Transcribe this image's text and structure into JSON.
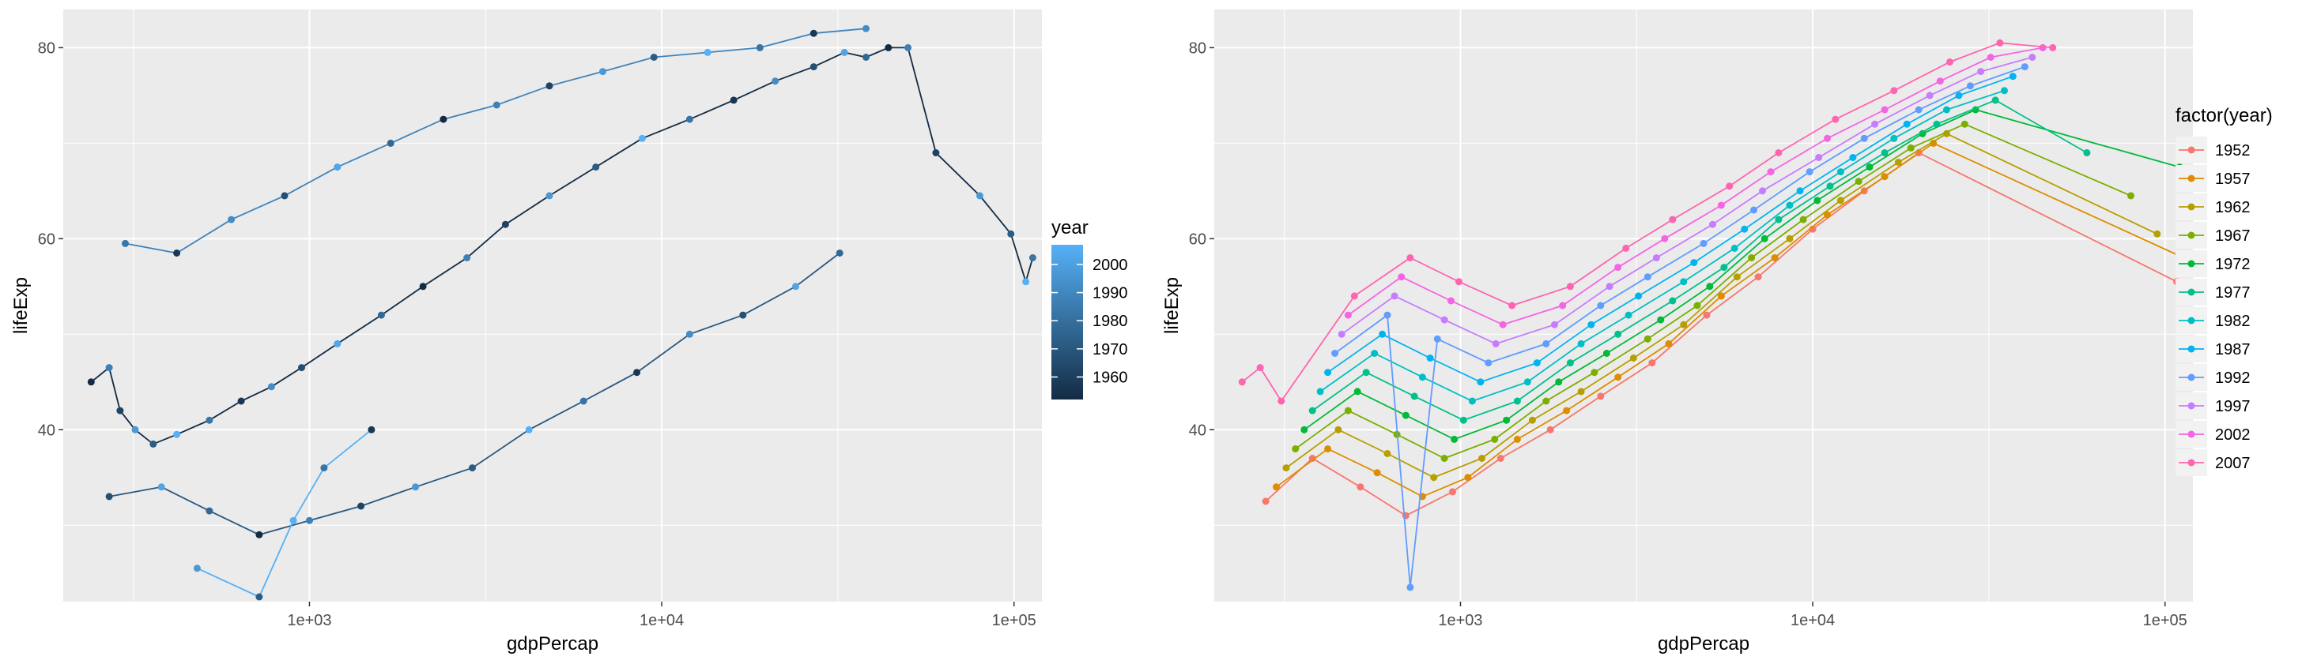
{
  "chart_data": [
    {
      "type": "line",
      "xlabel": "gdpPercap",
      "ylabel": "lifeExp",
      "x_scale": "log10",
      "xlim": [
        200,
        120000
      ],
      "ylim": [
        22,
        84
      ],
      "x_ticks": [
        {
          "value": 1000,
          "label": "1e+03"
        },
        {
          "value": 10000,
          "label": "1e+04"
        },
        {
          "value": 100000,
          "label": "1e+05"
        }
      ],
      "y_ticks": [
        {
          "value": 40,
          "label": "40"
        },
        {
          "value": 60,
          "label": "60"
        },
        {
          "value": 80,
          "label": "80"
        }
      ],
      "grid": true,
      "color_mapping": "continuous",
      "legend": {
        "title": "year",
        "position": "right",
        "colors": [
          "#132b43",
          "#56b1f7"
        ],
        "range": [
          1952,
          2007
        ],
        "labels": [
          "2000",
          "1990",
          "1980",
          "1970",
          "1960"
        ],
        "values": [
          2000,
          1990,
          1980,
          1970,
          1960
        ]
      },
      "series": [
        {
          "x": [
            240,
            270,
            290,
            320,
            360,
            420,
            520,
            640,
            780,
            950,
            1200,
            1600,
            2100,
            2800,
            3600,
            4800,
            6500,
            8800,
            12000,
            16000,
            21000,
            27000,
            33000,
            38000,
            44000,
            50000,
            60000,
            80000,
            98000,
            108000,
            113000
          ],
          "y": [
            45,
            46.5,
            42,
            40,
            38.5,
            39.5,
            41,
            43,
            44.5,
            46.5,
            49,
            52,
            55,
            58,
            61.5,
            64.5,
            67.5,
            70.5,
            72.5,
            74.5,
            76.5,
            78,
            79.5,
            79,
            80,
            80,
            69,
            64.5,
            60.5,
            55.5,
            58
          ]
        },
        {
          "x": [
            270,
            380,
            520,
            720,
            1000,
            1400,
            2000,
            2900,
            4200,
            6000,
            8500,
            12000,
            17000,
            24000,
            32000
          ],
          "y": [
            33,
            34,
            31.5,
            29,
            30.5,
            32,
            34,
            36,
            40,
            43,
            46,
            50,
            52,
            55,
            58.5
          ]
        },
        {
          "x": [
            300,
            420,
            600,
            850,
            1200,
            1700,
            2400,
            3400,
            4800,
            6800,
            9500,
            13500,
            19000,
            27000,
            38000
          ],
          "y": [
            59.5,
            58.5,
            62,
            64.5,
            67.5,
            70,
            72.5,
            74,
            76,
            77.5,
            79,
            79.5,
            80,
            81.5,
            82
          ]
        },
        {
          "x": [
            480,
            720,
            900,
            1100,
            1500
          ],
          "y": [
            25.5,
            22.5,
            30.5,
            36,
            40
          ]
        }
      ]
    },
    {
      "type": "line",
      "xlabel": "gdpPercap",
      "ylabel": "lifeExp",
      "x_scale": "log10",
      "xlim": [
        200,
        120000
      ],
      "ylim": [
        22,
        84
      ],
      "x_ticks": [
        {
          "value": 1000,
          "label": "1e+03"
        },
        {
          "value": 10000,
          "label": "1e+04"
        },
        {
          "value": 100000,
          "label": "1e+05"
        }
      ],
      "y_ticks": [
        {
          "value": 40,
          "label": "40"
        },
        {
          "value": 60,
          "label": "60"
        },
        {
          "value": 80,
          "label": "80"
        }
      ],
      "grid": true,
      "color_mapping": "discrete",
      "legend": {
        "title": "factor(year)",
        "position": "right",
        "entries": [
          {
            "label": "1952",
            "color": "#f8766d"
          },
          {
            "label": "1957",
            "color": "#de8c00"
          },
          {
            "label": "1962",
            "color": "#b79f00"
          },
          {
            "label": "1967",
            "color": "#7cae00"
          },
          {
            "label": "1972",
            "color": "#00ba38"
          },
          {
            "label": "1977",
            "color": "#00c08b"
          },
          {
            "label": "1982",
            "color": "#00bfc4"
          },
          {
            "label": "1987",
            "color": "#00b4f0"
          },
          {
            "label": "1992",
            "color": "#619cff"
          },
          {
            "label": "1997",
            "color": "#c77cff"
          },
          {
            "label": "2002",
            "color": "#f564e3"
          },
          {
            "label": "2007",
            "color": "#ff64b0"
          }
        ]
      },
      "series": [
        {
          "name": "1952",
          "x": [
            280,
            380,
            520,
            700,
            950,
            1300,
            1800,
            2500,
            3500,
            5000,
            7000,
            10000,
            14000,
            20000,
            108000
          ],
          "y": [
            32.5,
            37,
            34,
            31,
            33.5,
            37,
            40,
            43.5,
            47,
            52,
            56,
            61,
            65,
            69,
            55.5
          ]
        },
        {
          "name": "1957",
          "x": [
            300,
            420,
            580,
            780,
            1050,
            1450,
            2000,
            2800,
            3900,
            5500,
            7800,
            11000,
            16000,
            22000,
            113000
          ],
          "y": [
            34,
            38,
            35.5,
            33,
            35,
            39,
            42,
            45.5,
            49,
            54,
            58,
            62.5,
            66.5,
            70,
            58
          ]
        },
        {
          "name": "1962",
          "x": [
            320,
            450,
            620,
            840,
            1150,
            1600,
            2200,
            3100,
            4300,
            6100,
            8600,
            12000,
            17500,
            24000,
            95000
          ],
          "y": [
            36,
            40,
            37.5,
            35,
            37,
            41,
            44,
            47.5,
            51,
            56,
            60,
            64,
            68,
            71,
            60.5
          ]
        },
        {
          "name": "1967",
          "x": [
            340,
            480,
            660,
            900,
            1250,
            1750,
            2400,
            3400,
            4700,
            6700,
            9400,
            13500,
            19000,
            27000,
            80000
          ],
          "y": [
            38,
            42,
            39.5,
            37,
            39,
            43,
            46,
            49.5,
            53,
            58,
            62,
            66,
            69.5,
            72,
            64.5
          ]
        },
        {
          "name": "1972",
          "x": [
            360,
            510,
            700,
            960,
            1350,
            1900,
            2600,
            3700,
            5100,
            7300,
            10300,
            14500,
            20500,
            29000,
            110000
          ],
          "y": [
            40,
            44,
            41.5,
            39,
            41,
            45,
            48,
            51.5,
            55,
            60,
            64,
            67.5,
            71,
            73.5,
            67.5
          ]
        },
        {
          "name": "1977",
          "x": [
            380,
            540,
            740,
            1020,
            1450,
            2050,
            2800,
            4000,
            5600,
            8000,
            11200,
            16000,
            22500,
            33000,
            60000
          ],
          "y": [
            42,
            46,
            43.5,
            41,
            43,
            47,
            50,
            53.5,
            57,
            62,
            65.5,
            69,
            72,
            74.5,
            69
          ]
        },
        {
          "name": "1982",
          "x": [
            400,
            570,
            780,
            1080,
            1550,
            2200,
            3000,
            4300,
            6000,
            8600,
            12000,
            17000,
            24000,
            35000
          ],
          "y": [
            44,
            48,
            45.5,
            43,
            45,
            49,
            52,
            55.5,
            59,
            63.5,
            67,
            70.5,
            73.5,
            75.5
          ]
        },
        {
          "name": "1987",
          "x": [
            420,
            600,
            820,
            1140,
            1650,
            2350,
            3200,
            4600,
            6400,
            9200,
            13000,
            18500,
            26000,
            37000
          ],
          "y": [
            46,
            50,
            47.5,
            45,
            47,
            51,
            54,
            57.5,
            61,
            65,
            68.5,
            72,
            75,
            77
          ]
        },
        {
          "name": "1992",
          "x": [
            440,
            620,
            720,
            860,
            1200,
            1750,
            2500,
            3400,
            4900,
            6800,
            9800,
            14000,
            20000,
            28000,
            40000
          ],
          "y": [
            48,
            52,
            23.5,
            49.5,
            47,
            49,
            53,
            56,
            59.5,
            63,
            67,
            70.5,
            73.5,
            76,
            78
          ]
        },
        {
          "name": "1997",
          "x": [
            460,
            650,
            900,
            1260,
            1850,
            2650,
            3600,
            5200,
            7200,
            10400,
            15000,
            21500,
            30000,
            42000
          ],
          "y": [
            50,
            54,
            51.5,
            49,
            51,
            55,
            58,
            61.5,
            65,
            68.5,
            72,
            75,
            77.5,
            79
          ]
        },
        {
          "name": "2002",
          "x": [
            480,
            680,
            940,
            1320,
            1950,
            2800,
            3800,
            5500,
            7600,
            11000,
            16000,
            23000,
            32000,
            45000
          ],
          "y": [
            52,
            56,
            53.5,
            51,
            53,
            57,
            60,
            63.5,
            67,
            70.5,
            73.5,
            76.5,
            79,
            80
          ]
        },
        {
          "name": "2007",
          "x": [
            240,
            270,
            310,
            500,
            720,
            990,
            1400,
            2050,
            2950,
            4000,
            5800,
            8000,
            11600,
            17000,
            24500,
            34000,
            48000
          ],
          "y": [
            45,
            46.5,
            43,
            54,
            58,
            55.5,
            53,
            55,
            59,
            62,
            65.5,
            69,
            72.5,
            75.5,
            78.5,
            80.5,
            80
          ]
        }
      ]
    }
  ]
}
